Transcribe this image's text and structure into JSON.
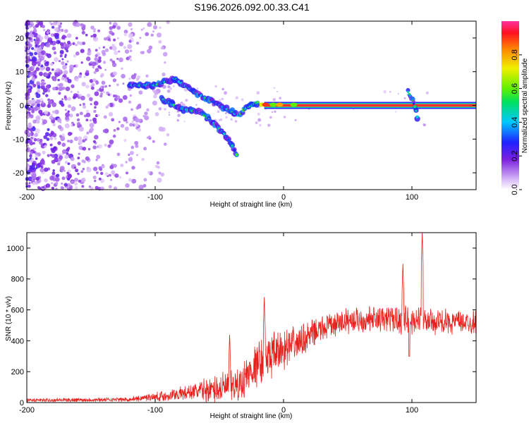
{
  "title": "S196.2026.092.00.33.C41",
  "chart_data": [
    {
      "type": "heatmap",
      "name": "spectrogram",
      "xlabel": "Height of straight line (km)",
      "ylabel": "Frequency (Hz)",
      "xlim": [
        -200,
        150
      ],
      "ylim": [
        -25,
        25
      ],
      "xticks": [
        -200,
        -100,
        0,
        100
      ],
      "yticks": [
        -20,
        -10,
        0,
        10,
        20
      ],
      "colorbar": {
        "label": "Normalized spectral amplitude",
        "ticks": [
          "0.0",
          "0.2",
          "0.4",
          "0.6",
          "0.8"
        ],
        "tick_values": [
          0.0,
          0.2,
          0.4,
          0.6,
          0.8
        ],
        "range": [
          0,
          1
        ]
      },
      "features": [
        {
          "name": "carrier-line",
          "x": [
            -15,
            150
          ],
          "freq": 0,
          "amplitude": 0.95
        },
        {
          "name": "upper-arc",
          "points": [
            [
              -120,
              6
            ],
            [
              -100,
              6
            ],
            [
              -85,
              8
            ],
            [
              -70,
              4
            ],
            [
              -60,
              2
            ],
            [
              -50,
              0
            ],
            [
              -40,
              -2
            ],
            [
              -35,
              -3
            ],
            [
              -30,
              -1
            ],
            [
              -25,
              0
            ],
            [
              -20,
              1
            ]
          ]
        },
        {
          "name": "lower-arc",
          "points": [
            [
              -95,
              2
            ],
            [
              -80,
              -1
            ],
            [
              -65,
              -2
            ],
            [
              -55,
              -5
            ],
            [
              -45,
              -9
            ],
            [
              -40,
              -12
            ],
            [
              -36,
              -15
            ]
          ]
        },
        {
          "name": "spur-105km",
          "points": [
            [
              97,
              4
            ],
            [
              100,
              2
            ],
            [
              103,
              -1
            ],
            [
              105,
              -5
            ]
          ]
        }
      ]
    },
    {
      "type": "line",
      "name": "snr",
      "xlabel": "Height of straight line (km)",
      "ylabel": "SNR (10 * v/v)",
      "xlim": [
        -200,
        150
      ],
      "ylim": [
        0,
        1100
      ],
      "xticks": [
        -200,
        -100,
        0,
        100
      ],
      "yticks": [
        0,
        200,
        400,
        600,
        800,
        1000
      ],
      "color": "#e8201c",
      "envelope": [
        {
          "x": -200,
          "mean": 15,
          "amp": 12
        },
        {
          "x": -120,
          "mean": 20,
          "amp": 15
        },
        {
          "x": -90,
          "mean": 45,
          "amp": 40
        },
        {
          "x": -70,
          "mean": 70,
          "amp": 60
        },
        {
          "x": -50,
          "mean": 90,
          "amp": 110
        },
        {
          "x": -35,
          "mean": 110,
          "amp": 120
        },
        {
          "x": -25,
          "mean": 220,
          "amp": 160
        },
        {
          "x": -10,
          "mean": 300,
          "amp": 160
        },
        {
          "x": 10,
          "mean": 380,
          "amp": 120
        },
        {
          "x": 30,
          "mean": 480,
          "amp": 90
        },
        {
          "x": 50,
          "mean": 530,
          "amp": 90
        },
        {
          "x": 80,
          "mean": 540,
          "amp": 90
        },
        {
          "x": 100,
          "mean": 530,
          "amp": 100
        },
        {
          "x": 150,
          "mean": 520,
          "amp": 80
        }
      ],
      "spikes": [
        {
          "x": -42,
          "y": 450
        },
        {
          "x": -15,
          "y": 690
        },
        {
          "x": 93,
          "y": 910
        },
        {
          "x": 98,
          "y": 300
        },
        {
          "x": 108,
          "y": 1100
        }
      ]
    }
  ]
}
